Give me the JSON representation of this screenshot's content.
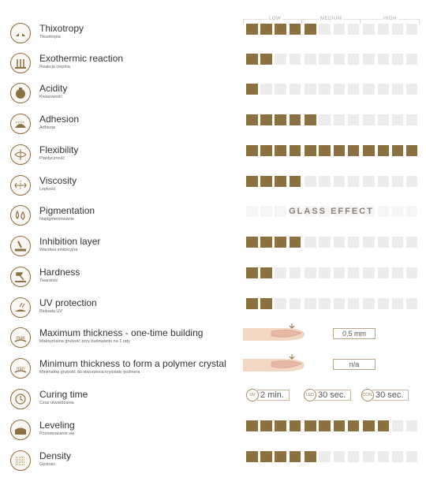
{
  "scale": {
    "low": "LOW",
    "medium": "MEDIUM",
    "high": "HIGH"
  },
  "colors": {
    "accent": "#8b7141",
    "empty": "#ececec",
    "icon_border": "#8e6b3c"
  },
  "properties": [
    {
      "key": "thixotropy",
      "title": "Thixotropy",
      "subtitle": "Tiksotropia",
      "icon": "thixotropy-icon",
      "level": 5,
      "max": 12
    },
    {
      "key": "exothermic",
      "title": "Exothermic reaction",
      "subtitle": "Reakcja cieplna",
      "icon": "exothermic-icon",
      "level": 2,
      "max": 12
    },
    {
      "key": "acidity",
      "title": "Acidity",
      "subtitle": "Kwasowość",
      "icon": "acidity-icon",
      "icon_text": "pH",
      "level": 1,
      "max": 12
    },
    {
      "key": "adhesion",
      "title": "Adhesion",
      "subtitle": "Adhezja",
      "icon": "adhesion-icon",
      "level": 5,
      "max": 12
    },
    {
      "key": "flexibility",
      "title": "Flexibility",
      "subtitle": "Plastyczność",
      "icon": "flexibility-icon",
      "level": 12,
      "max": 12
    },
    {
      "key": "viscosity",
      "title": "Viscosity",
      "subtitle": "Lepkość",
      "icon": "viscosity-icon",
      "level": 4,
      "max": 12
    },
    {
      "key": "pigmentation",
      "title": "Pigmentation",
      "subtitle": "Napigmentowanie",
      "icon": "pigmentation-icon",
      "text_value": "GLASS EFFECT"
    },
    {
      "key": "inhibition",
      "title": "Inhibition layer",
      "subtitle": "Warstwa inhibicyjna",
      "icon": "inhibition-icon",
      "level": 4,
      "max": 12
    },
    {
      "key": "hardness",
      "title": "Hardness",
      "subtitle": "Twardość",
      "icon": "hardness-icon",
      "level": 2,
      "max": 12
    },
    {
      "key": "uv",
      "title": "UV protection",
      "subtitle": "Blokada UV",
      "icon": "uv-protection-icon",
      "level": 2,
      "max": 12
    },
    {
      "key": "maxthick",
      "title": "Maximum thickness - one-time building",
      "subtitle": "Maksymalna grubość przy budowaniu na 1 raty",
      "icon": "max-thickness-icon",
      "icon_text": "max",
      "box_value": "0,5 mm"
    },
    {
      "key": "minthick",
      "title": "Minimum thickness to form a polymer crystal",
      "subtitle": "Minimalna grubość do stworzenia kryształu polimera",
      "icon": "min-thickness-icon",
      "icon_text": "min",
      "box_value": "n/a"
    },
    {
      "key": "curing",
      "title": "Curing time",
      "subtitle": "Czas utwardzania",
      "icon": "curing-time-icon",
      "cures": [
        {
          "lamp": "UV",
          "value": "2 min."
        },
        {
          "lamp": "LED",
          "value": "30 sec."
        },
        {
          "lamp": "CCFL",
          "value": "30 sec."
        }
      ]
    },
    {
      "key": "leveling",
      "title": "Leveling",
      "subtitle": "Poziomowanie się",
      "icon": "leveling-icon",
      "level": 10,
      "max": 12
    },
    {
      "key": "density",
      "title": "Density",
      "subtitle": "Gęstość",
      "icon": "density-icon",
      "level": 5,
      "max": 12
    }
  ]
}
